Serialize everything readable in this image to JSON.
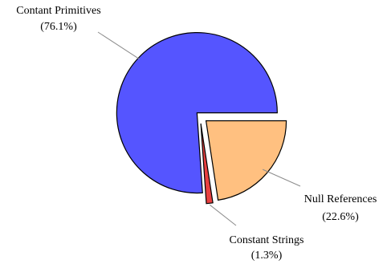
{
  "chart_data": {
    "type": "pie",
    "exploded": true,
    "start_angle_deg": 0,
    "direction": "clockwise",
    "slices": [
      {
        "name": "Null References",
        "value": 22.6,
        "label": "(22.6%)",
        "color": "#ffc080"
      },
      {
        "name": "Constant Strings",
        "value": 1.3,
        "label": "(1.3%)",
        "color": "#e84040"
      },
      {
        "name": "Contant Primitives",
        "value": 76.1,
        "label": "(76.1%)",
        "color": "#5555ff"
      }
    ]
  }
}
